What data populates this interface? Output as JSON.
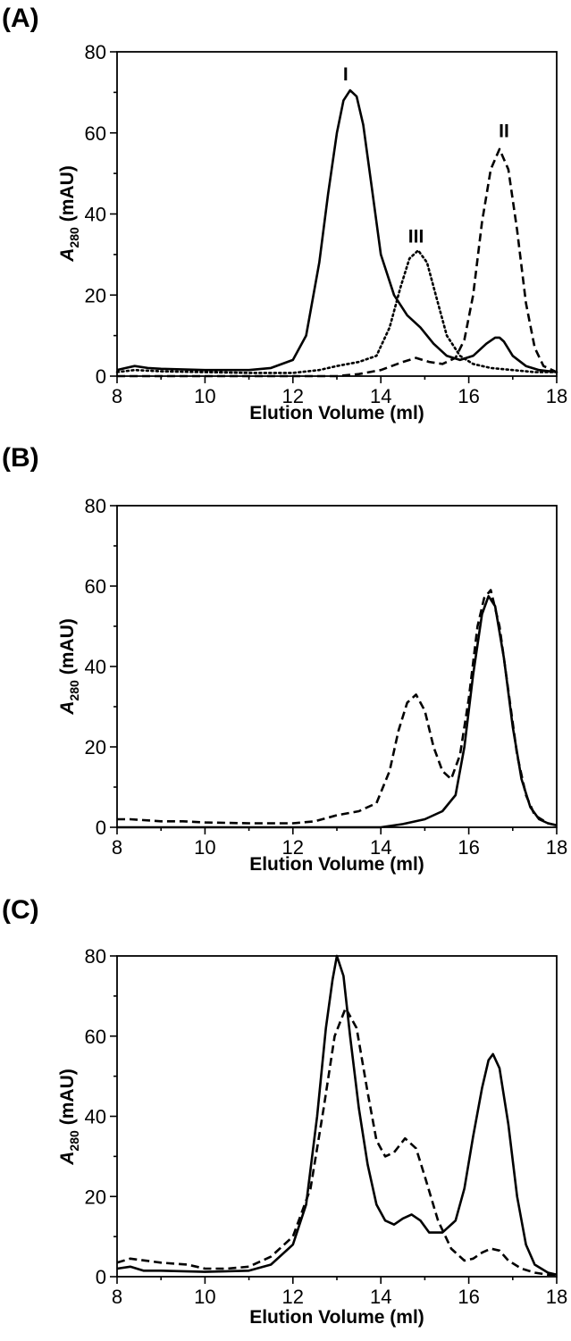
{
  "chart_data": [
    {
      "type": "line",
      "panel_label": "(A)",
      "xlabel": "Elution Volume (ml)",
      "ylabel_main": "A",
      "ylabel_sub": "280",
      "ylabel_unit": "(mAU)",
      "xlim": [
        8,
        18
      ],
      "ylim": [
        0,
        80
      ],
      "xticks": [
        8,
        10,
        12,
        14,
        16,
        18
      ],
      "yticks": [
        0,
        20,
        40,
        60,
        80
      ],
      "grid": false,
      "annotations": [
        {
          "text": "I",
          "x": 13.2,
          "y": 73
        },
        {
          "text": "III",
          "x": 14.8,
          "y": 33
        },
        {
          "text": "II",
          "x": 16.8,
          "y": 59
        }
      ],
      "series": [
        {
          "style": "solid",
          "x": [
            8,
            8.2,
            8.4,
            8.7,
            9,
            10,
            11,
            11.5,
            12,
            12.3,
            12.6,
            12.8,
            13.0,
            13.15,
            13.3,
            13.45,
            13.6,
            13.8,
            14.0,
            14.3,
            14.6,
            14.9,
            15.2,
            15.5,
            15.8,
            16.1,
            16.4,
            16.6,
            16.7,
            16.8,
            17.0,
            17.3,
            17.6,
            18
          ],
          "values": [
            1.5,
            2,
            2.5,
            2,
            1.8,
            1.5,
            1.5,
            2,
            4,
            10,
            28,
            45,
            60,
            68,
            70.5,
            69,
            62,
            46,
            30,
            20,
            15,
            12,
            8,
            5,
            4,
            5,
            8,
            9.5,
            9.5,
            8.5,
            5,
            2.5,
            1.5,
            1
          ]
        },
        {
          "style": "dotted",
          "x": [
            8,
            8.4,
            9,
            10,
            11,
            12,
            12.6,
            13.0,
            13.5,
            13.9,
            14.2,
            14.45,
            14.65,
            14.85,
            15.05,
            15.25,
            15.5,
            15.8,
            16.1,
            16.5,
            17,
            17.5,
            18
          ],
          "values": [
            1,
            1.5,
            1.2,
            1,
            0.8,
            0.8,
            1.5,
            2.5,
            3.5,
            5,
            12,
            22,
            29,
            31,
            28,
            20,
            10,
            5,
            3,
            2,
            1.5,
            1,
            1
          ]
        },
        {
          "style": "dashed",
          "x": [
            8,
            10,
            12,
            13.0,
            13.5,
            14.0,
            14.5,
            14.8,
            15.1,
            15.4,
            15.7,
            15.9,
            16.1,
            16.3,
            16.5,
            16.7,
            16.9,
            17.1,
            17.3,
            17.5,
            17.7,
            18
          ],
          "values": [
            0,
            0,
            0,
            0,
            0.5,
            1.5,
            3.5,
            4.5,
            3.5,
            3,
            4.5,
            9,
            20,
            38,
            51,
            56,
            51,
            36,
            18,
            7,
            2.5,
            1
          ]
        }
      ]
    },
    {
      "type": "line",
      "panel_label": "(B)",
      "xlabel": "Elution Volume (ml)",
      "ylabel_main": "A",
      "ylabel_sub": "280",
      "ylabel_unit": "(mAU)",
      "xlim": [
        8,
        18
      ],
      "ylim": [
        0,
        80
      ],
      "xticks": [
        8,
        10,
        12,
        14,
        16,
        18
      ],
      "yticks": [
        0,
        20,
        40,
        60,
        80
      ],
      "grid": false,
      "annotations": [],
      "series": [
        {
          "style": "solid",
          "x": [
            8,
            10,
            12,
            13,
            13.5,
            14.0,
            14.5,
            15.0,
            15.4,
            15.7,
            15.9,
            16.1,
            16.3,
            16.45,
            16.6,
            16.8,
            17.0,
            17.2,
            17.4,
            17.6,
            17.8,
            18
          ],
          "values": [
            0,
            0,
            0,
            0,
            0,
            0,
            0.8,
            2,
            4,
            8,
            20,
            38,
            53,
            57.5,
            55,
            42,
            25,
            12,
            5,
            2,
            1,
            0.5
          ]
        },
        {
          "style": "dashed",
          "x": [
            8,
            8.3,
            9,
            9.5,
            10,
            11,
            12,
            12.5,
            13,
            13.5,
            13.9,
            14.2,
            14.4,
            14.6,
            14.8,
            15.0,
            15.2,
            15.4,
            15.6,
            15.8,
            16.0,
            16.2,
            16.35,
            16.5,
            16.7,
            16.9,
            17.1,
            17.3,
            17.5,
            17.8,
            18
          ],
          "values": [
            2,
            2,
            1.5,
            1.5,
            1.2,
            1,
            1,
            1.5,
            3,
            4,
            6,
            14,
            24,
            31,
            33,
            29,
            20,
            14,
            12,
            18,
            32,
            50,
            57,
            59,
            50,
            34,
            18,
            8,
            3,
            1,
            0.5
          ]
        }
      ]
    },
    {
      "type": "line",
      "panel_label": "(C)",
      "xlabel": "Elution Volume (ml)",
      "ylabel_main": "A",
      "ylabel_sub": "280",
      "ylabel_unit": "(mAU)",
      "xlim": [
        8,
        18
      ],
      "ylim": [
        0,
        80
      ],
      "xticks": [
        8,
        10,
        12,
        14,
        16,
        18
      ],
      "yticks": [
        0,
        20,
        40,
        60,
        80
      ],
      "grid": false,
      "annotations": [],
      "series": [
        {
          "style": "solid",
          "x": [
            8,
            8.3,
            8.6,
            9,
            10,
            11,
            11.5,
            12,
            12.3,
            12.55,
            12.75,
            12.9,
            13.0,
            13.15,
            13.3,
            13.5,
            13.7,
            13.9,
            14.1,
            14.3,
            14.5,
            14.7,
            14.9,
            15.1,
            15.4,
            15.7,
            15.9,
            16.1,
            16.3,
            16.45,
            16.55,
            16.7,
            16.9,
            17.1,
            17.3,
            17.5,
            17.8,
            18
          ],
          "values": [
            2,
            2.5,
            1.5,
            1.5,
            1.2,
            1.5,
            3,
            8,
            18,
            40,
            62,
            74,
            80,
            75,
            60,
            42,
            28,
            18,
            14,
            13,
            14.5,
            15.5,
            14,
            11,
            11,
            14,
            22,
            35,
            47,
            54,
            55.5,
            52,
            38,
            20,
            8,
            3,
            1,
            0.5
          ]
        },
        {
          "style": "dashed",
          "x": [
            8,
            8.3,
            9,
            9.6,
            10,
            10.5,
            11,
            11.5,
            12,
            12.4,
            12.7,
            12.95,
            13.2,
            13.45,
            13.7,
            13.9,
            14.1,
            14.3,
            14.55,
            14.8,
            15.0,
            15.3,
            15.6,
            15.9,
            16.1,
            16.3,
            16.5,
            16.7,
            16.9,
            17.2,
            17.5,
            17.8,
            18
          ],
          "values": [
            3.5,
            4.5,
            3.5,
            3,
            2,
            2,
            2.5,
            5,
            10,
            22,
            42,
            60,
            67,
            62,
            46,
            34,
            30,
            31,
            34.5,
            32,
            25,
            14,
            7,
            4,
            4.5,
            6,
            7,
            6.5,
            4,
            2,
            1,
            0.5,
            0.5
          ]
        }
      ]
    }
  ]
}
